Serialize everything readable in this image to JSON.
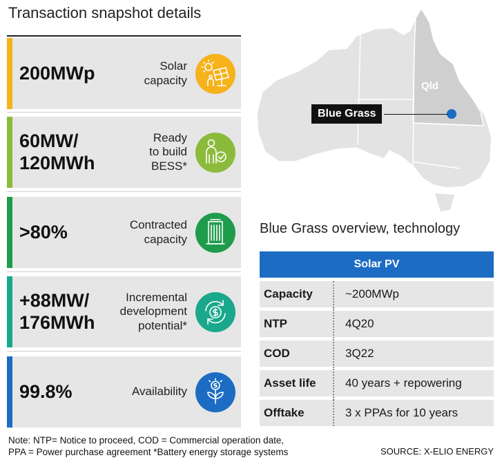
{
  "title": "Transaction snapshot details",
  "cards": [
    {
      "value": "200MWp",
      "label": "Solar\ncapacity",
      "color": "#f5b21b",
      "icon": "solar-panel-icon"
    },
    {
      "value": "60MW/\n120MWh",
      "label": "Ready\nto build\nBESS*",
      "color": "#8cbb3c",
      "icon": "person-check-icon"
    },
    {
      "value": ">80%",
      "label": "Contracted\ncapacity",
      "color": "#1e9c4b",
      "icon": "office-building-icon"
    },
    {
      "value": "+88MW/\n176MWh",
      "label": "Incremental\ndevelopment\npotential*",
      "color": "#1aa88d",
      "icon": "dollar-cycle-icon"
    },
    {
      "value": "99.8%",
      "label": "Availability",
      "color": "#1c6cc4",
      "icon": "sprout-coin-icon"
    }
  ],
  "map": {
    "site_label": "Blue Grass",
    "region_label": "Qld",
    "marker_color": "#1c6cc4"
  },
  "overview": {
    "title": "Blue Grass overview, technology",
    "header": "Solar PV",
    "rows": [
      {
        "key": "Capacity",
        "value": "~200MWp"
      },
      {
        "key": "NTP",
        "value": "4Q20"
      },
      {
        "key": "COD",
        "value": "3Q22"
      },
      {
        "key": "Asset life",
        "value": "40 years + repowering"
      },
      {
        "key": "Offtake",
        "value": "3 x PPAs for 10 years"
      }
    ]
  },
  "note": "Note: NTP= Notice to proceed, COD = Commercial operation date,\nPPA = Power purchase agreement   *Battery energy storage systems",
  "source": "SOURCE: X-ELIO ENERGY"
}
